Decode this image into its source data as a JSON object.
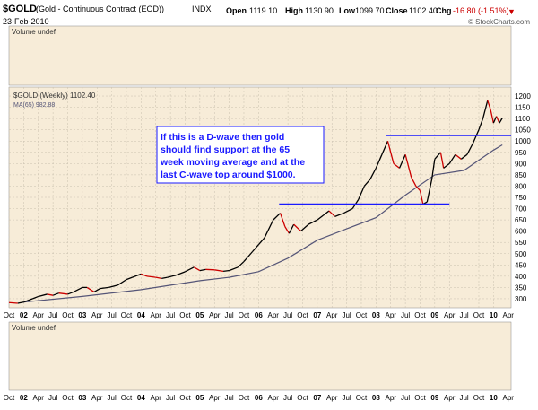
{
  "header": {
    "symbol": "$GOLD",
    "description": "(Gold - Continuous Contract (EOD))",
    "exchange": "INDX",
    "date": "23-Feb-2010",
    "open_label": "Open",
    "open": "1119.10",
    "high_label": "High",
    "high": "1130.90",
    "low_label": "Low",
    "low": "1099.70",
    "close_label": "Close",
    "close": "1102.40",
    "chg_label": "Chg",
    "chg": "-16.80 (-1.51%)",
    "chg_arrow": "▼",
    "watermark": "© StockCharts.com"
  },
  "panels": {
    "top_volume": "Volume undef",
    "bottom_volume": "Volume undef"
  },
  "legend": {
    "price": "$GOLD (Weekly) 1102.40",
    "ma": "MA(65) 982.88"
  },
  "annotation": {
    "lines": [
      "If this is a D-wave then gold",
      "should find support at the 65",
      "week moving average and at the",
      "last C-wave top around $1000."
    ]
  },
  "colors": {
    "panel_bg": "#f7ecd8",
    "price_up": "#000000",
    "price_down": "#cc0000",
    "ma_line": "#555577",
    "support_lines": "#1a1aff",
    "annotation_text": "#1a1aff",
    "grid": "#c8bfae"
  },
  "chart_data": {
    "type": "line",
    "title": "$GOLD (Weekly) 1102.40",
    "x_axis_labels": [
      "Oct",
      "02",
      "Apr",
      "Jul",
      "Oct",
      "03",
      "Apr",
      "Jul",
      "Oct",
      "04",
      "Apr",
      "Jul",
      "Oct",
      "05",
      "Apr",
      "Jul",
      "Oct",
      "06",
      "Apr",
      "Jul",
      "Oct",
      "07",
      "Apr",
      "Jul",
      "Oct",
      "08",
      "Apr",
      "Jul",
      "Oct",
      "09",
      "Apr",
      "Jul",
      "Oct",
      "10",
      "Apr"
    ],
    "y_ticks": [
      300,
      350,
      400,
      450,
      500,
      550,
      600,
      650,
      700,
      750,
      800,
      850,
      900,
      950,
      1000,
      1050,
      1100,
      1150,
      1200
    ],
    "ylim": [
      260,
      1240
    ],
    "xlim": [
      2001.75,
      2010.3
    ],
    "grid": true,
    "legend_position": "top-left",
    "series": [
      {
        "name": "$GOLD (Weekly) 1102.40",
        "x": [
          2001.75,
          2001.9,
          2002.0,
          2002.15,
          2002.25,
          2002.4,
          2002.5,
          2002.6,
          2002.75,
          2002.85,
          2003.0,
          2003.08,
          2003.2,
          2003.3,
          2003.45,
          2003.6,
          2003.75,
          2003.85,
          2004.0,
          2004.1,
          2004.25,
          2004.35,
          2004.45,
          2004.6,
          2004.75,
          2004.9,
          2005.0,
          2005.1,
          2005.25,
          2005.4,
          2005.5,
          2005.65,
          2005.75,
          2005.9,
          2006.0,
          2006.1,
          2006.25,
          2006.37,
          2006.45,
          2006.52,
          2006.6,
          2006.72,
          2006.85,
          2007.0,
          2007.1,
          2007.2,
          2007.3,
          2007.45,
          2007.6,
          2007.7,
          2007.8,
          2007.9,
          2008.0,
          2008.1,
          2008.2,
          2008.3,
          2008.4,
          2008.5,
          2008.6,
          2008.68,
          2008.75,
          2008.8,
          2008.87,
          2008.95,
          2009.0,
          2009.1,
          2009.15,
          2009.25,
          2009.35,
          2009.45,
          2009.55,
          2009.65,
          2009.75,
          2009.82,
          2009.9,
          2009.95,
          2010.0,
          2010.05,
          2010.1,
          2010.15
        ],
        "values": [
          283,
          280,
          285,
          300,
          310,
          320,
          315,
          325,
          320,
          330,
          350,
          350,
          330,
          345,
          350,
          360,
          385,
          395,
          410,
          400,
          395,
          390,
          395,
          405,
          420,
          440,
          425,
          430,
          428,
          422,
          425,
          440,
          465,
          510,
          540,
          570,
          650,
          680,
          620,
          590,
          630,
          600,
          630,
          650,
          670,
          690,
          665,
          680,
          700,
          740,
          800,
          830,
          880,
          940,
          1000,
          900,
          880,
          940,
          840,
          800,
          780,
          720,
          730,
          830,
          920,
          950,
          880,
          900,
          940,
          920,
          940,
          990,
          1050,
          1100,
          1180,
          1140,
          1080,
          1110,
          1080,
          1102
        ]
      },
      {
        "name": "MA(65) 982.88",
        "x": [
          2002.0,
          2003.0,
          2004.0,
          2005.0,
          2005.5,
          2006.0,
          2006.5,
          2007.0,
          2007.5,
          2008.0,
          2008.5,
          2009.0,
          2009.5,
          2010.0,
          2010.15
        ],
        "values": [
          285,
          310,
          340,
          380,
          395,
          420,
          480,
          560,
          610,
          660,
          760,
          850,
          870,
          960,
          983
        ]
      }
    ],
    "support_lines": [
      {
        "from_x": 2006.35,
        "to_x": 2009.25,
        "y": 720
      },
      {
        "from_x": 2008.17,
        "to_x": 2010.3,
        "y": 1025
      }
    ]
  }
}
